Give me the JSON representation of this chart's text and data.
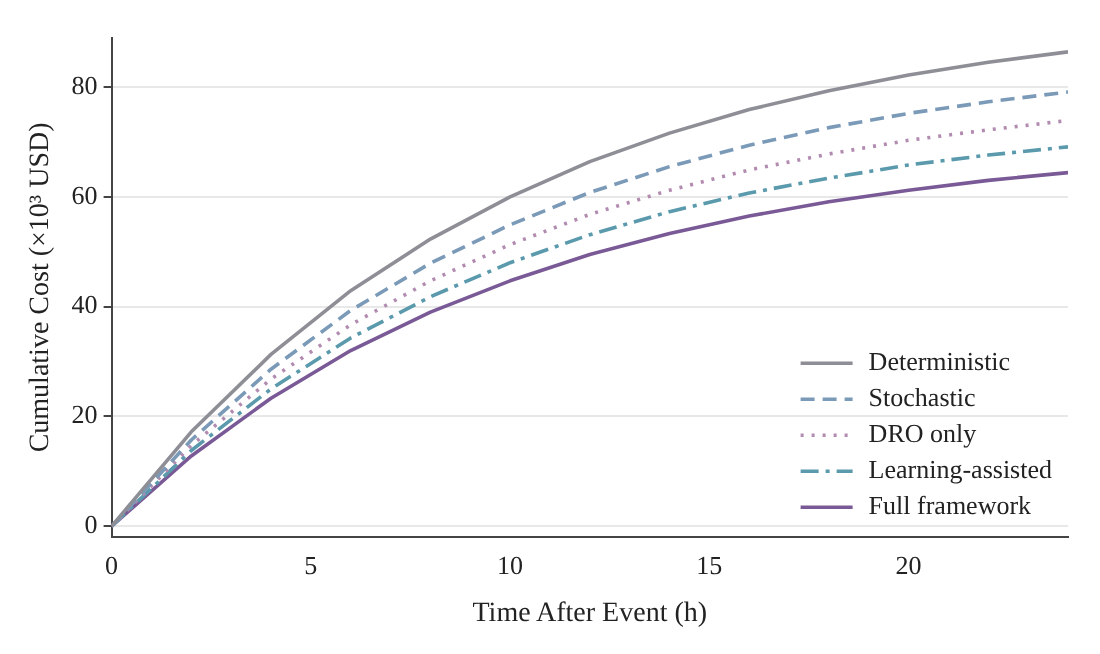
{
  "chart_data": {
    "type": "line",
    "xlabel": "Time After Event (h)",
    "ylabel": "Cumulative Cost (×10³ USD)",
    "x": [
      0,
      2,
      4,
      6,
      8,
      10,
      12,
      14,
      16,
      18,
      20,
      22,
      24
    ],
    "series": [
      {
        "name": "Deterministic",
        "color": "#8e8e96",
        "line_style": "solid",
        "values": [
          0,
          17.2,
          31.3,
          42.9,
          52.3,
          60.0,
          66.4,
          71.6,
          75.9,
          79.3,
          82.2,
          84.5,
          86.4
        ]
      },
      {
        "name": "Stochastic",
        "color": "#7a9ab8",
        "line_style": "dashed",
        "values": [
          0,
          15.7,
          28.6,
          39.3,
          47.9,
          54.9,
          60.8,
          65.5,
          69.4,
          72.6,
          75.2,
          77.3,
          79.1
        ]
      },
      {
        "name": "DRO only",
        "color": "#b28bb0",
        "line_style": "dotted",
        "values": [
          0,
          14.7,
          26.8,
          36.7,
          44.7,
          51.3,
          56.8,
          61.2,
          64.9,
          67.8,
          70.3,
          72.2,
          73.9
        ]
      },
      {
        "name": "Learning-assisted",
        "color": "#5a9aac",
        "line_style": "dashdot",
        "values": [
          0,
          13.8,
          25.0,
          34.3,
          41.8,
          48.0,
          53.1,
          57.3,
          60.7,
          63.4,
          65.8,
          67.6,
          69.1
        ]
      },
      {
        "name": "Full framework",
        "color": "#7a5a96",
        "line_style": "solid",
        "values": [
          0,
          12.8,
          23.3,
          32.0,
          39.0,
          44.7,
          49.5,
          53.3,
          56.5,
          59.1,
          61.2,
          63.0,
          64.4
        ]
      }
    ],
    "xlim": [
      0,
      24
    ],
    "xticks": [
      0,
      5,
      10,
      15,
      20
    ],
    "ylim": [
      -2,
      89
    ],
    "yticks": [
      0,
      20,
      40,
      60,
      80
    ],
    "grid": "y",
    "legend": "bottom right",
    "marker": "none"
  }
}
